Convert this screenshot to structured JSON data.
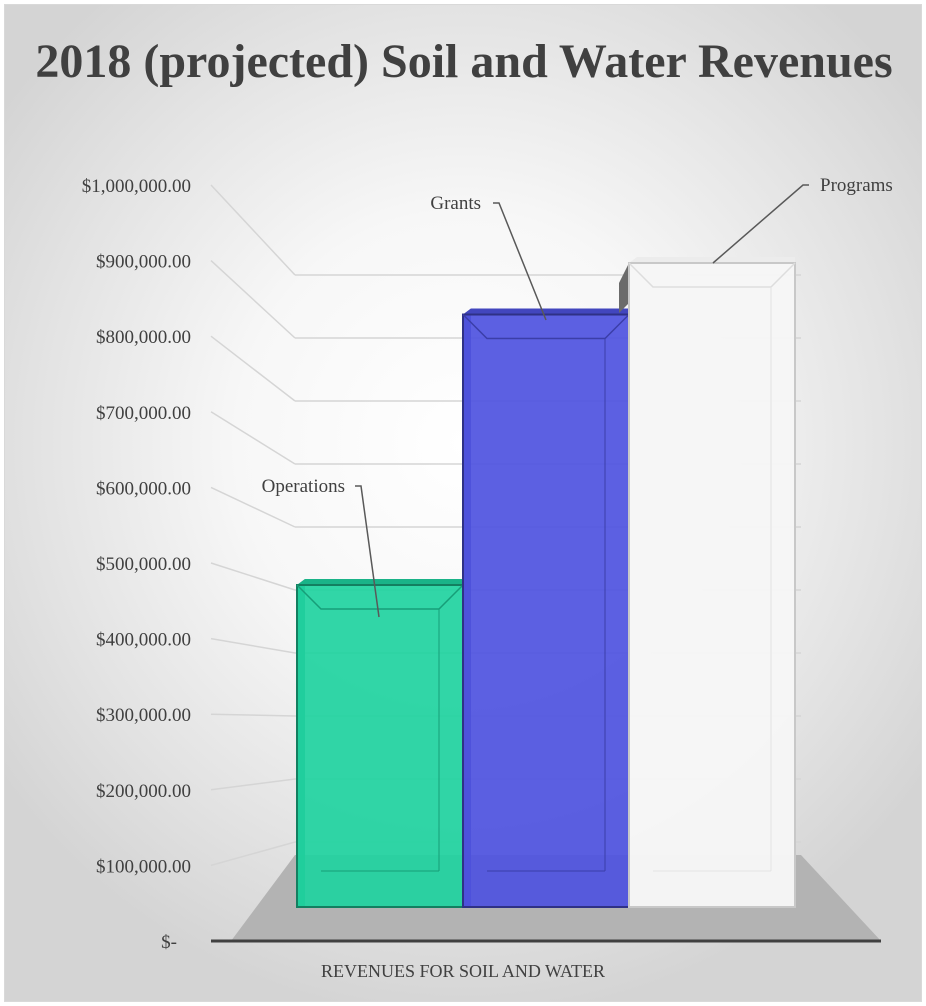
{
  "chart_data": {
    "type": "bar",
    "title": "2018 (projected) Soil and Water Revenues",
    "xlabel": "REVENUES FOR SOIL AND WATER",
    "ylabel": "",
    "ylim": [
      0,
      1000000
    ],
    "y_ticks": [
      0,
      100000,
      200000,
      300000,
      400000,
      500000,
      600000,
      700000,
      800000,
      900000,
      1000000
    ],
    "y_tick_labels": [
      "$-",
      "$100,000.00",
      "$200,000.00",
      "$300,000.00",
      "$400,000.00",
      "$500,000.00",
      "$600,000.00",
      "$700,000.00",
      "$800,000.00",
      "$900,000.00",
      "$1,000,000.00"
    ],
    "categories": [
      "REVENUES FOR SOIL AND WATER"
    ],
    "grid": true,
    "legend": "none",
    "style": "3d-clustered-column",
    "series": [
      {
        "name": "Operations",
        "values": [
          500000
        ],
        "color": "#1fd3a0"
      },
      {
        "name": "Grants",
        "values": [
          920000
        ],
        "color": "#4e52e0"
      },
      {
        "name": "Programs",
        "values": [
          1000000
        ],
        "color": "#f6f6f6"
      }
    ]
  }
}
